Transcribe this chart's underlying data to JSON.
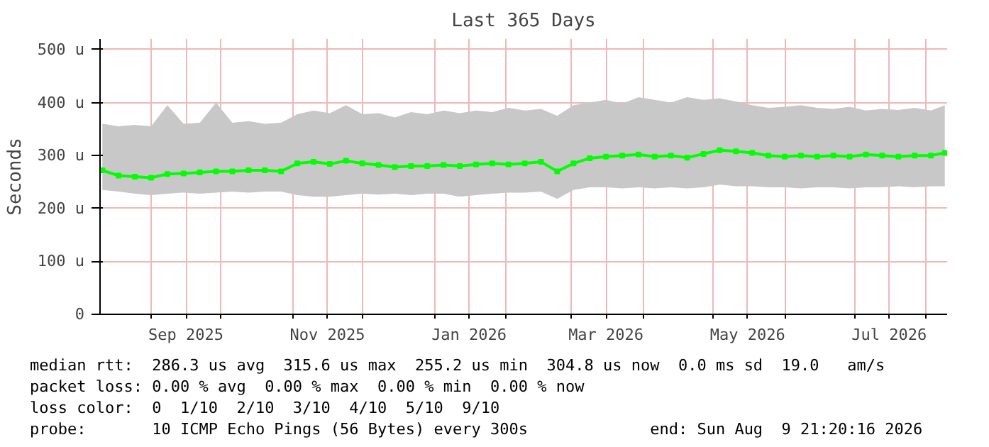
{
  "chart_data": {
    "type": "line",
    "title": "Last 365 Days",
    "ylabel": "Seconds",
    "x": [
      "2025-08-11",
      "2025-08-18",
      "2025-08-25",
      "2025-09-01",
      "2025-09-08",
      "2025-09-15",
      "2025-09-22",
      "2025-09-29",
      "2025-10-06",
      "2025-10-13",
      "2025-10-20",
      "2025-10-27",
      "2025-11-03",
      "2025-11-10",
      "2025-11-17",
      "2025-11-24",
      "2025-12-01",
      "2025-12-08",
      "2025-12-15",
      "2025-12-22",
      "2025-12-29",
      "2026-01-05",
      "2026-01-12",
      "2026-01-19",
      "2026-01-26",
      "2026-02-02",
      "2026-02-09",
      "2026-02-16",
      "2026-02-23",
      "2026-03-02",
      "2026-03-09",
      "2026-03-16",
      "2026-03-23",
      "2026-03-30",
      "2026-04-06",
      "2026-04-13",
      "2026-04-20",
      "2026-04-27",
      "2026-05-04",
      "2026-05-11",
      "2026-05-18",
      "2026-05-25",
      "2026-06-01",
      "2026-06-08",
      "2026-06-15",
      "2026-06-22",
      "2026-06-29",
      "2026-07-06",
      "2026-07-13",
      "2026-07-20",
      "2026-07-27",
      "2026-08-03",
      "2026-08-09"
    ],
    "series": [
      {
        "color": "#00ff00",
        "values": [
          272,
          262,
          260,
          258,
          265,
          266,
          268,
          270,
          270,
          272,
          272,
          270,
          285,
          288,
          284,
          290,
          285,
          282,
          278,
          280,
          280,
          282,
          280,
          283,
          285,
          283,
          285,
          288,
          270,
          285,
          295,
          298,
          300,
          302,
          298,
          300,
          296,
          303,
          310,
          308,
          305,
          300,
          298,
          300,
          298,
          300,
          298,
          302,
          300,
          298,
          300,
          300,
          305
        ],
        "lower": [
          235,
          232,
          228,
          225,
          228,
          230,
          228,
          230,
          232,
          230,
          232,
          232,
          225,
          222,
          222,
          225,
          228,
          226,
          228,
          225,
          228,
          228,
          222,
          225,
          228,
          230,
          230,
          232,
          218,
          235,
          240,
          240,
          238,
          240,
          238,
          240,
          238,
          240,
          245,
          242,
          242,
          240,
          240,
          238,
          240,
          240,
          238,
          240,
          240,
          242,
          240,
          242,
          242
        ],
        "upper": [
          360,
          355,
          358,
          355,
          395,
          360,
          362,
          400,
          362,
          365,
          360,
          362,
          378,
          385,
          380,
          395,
          378,
          380,
          372,
          382,
          378,
          385,
          380,
          385,
          382,
          390,
          385,
          388,
          375,
          395,
          400,
          405,
          398,
          410,
          405,
          400,
          410,
          405,
          408,
          402,
          395,
          390,
          392,
          395,
          390,
          388,
          392,
          385,
          388,
          386,
          390,
          385,
          395
        ]
      }
    ],
    "xlim": [
      "2025-08-10",
      "2026-08-10"
    ],
    "xticks": [
      {
        "value": "2025-09-01",
        "label": null
      },
      {
        "value": "2025-09-16",
        "label": "Sep 2025"
      },
      {
        "value": "2025-10-01",
        "label": null
      },
      {
        "value": "2025-11-01",
        "label": null
      },
      {
        "value": "2025-11-16",
        "label": "Nov 2025"
      },
      {
        "value": "2025-12-01",
        "label": null
      },
      {
        "value": "2026-01-01",
        "label": null
      },
      {
        "value": "2026-01-16",
        "label": "Jan 2026"
      },
      {
        "value": "2026-02-01",
        "label": null
      },
      {
        "value": "2026-03-01",
        "label": null
      },
      {
        "value": "2026-03-16",
        "label": "Mar 2026"
      },
      {
        "value": "2026-04-01",
        "label": null
      },
      {
        "value": "2026-05-01",
        "label": null
      },
      {
        "value": "2026-05-16",
        "label": "May 2026"
      },
      {
        "value": "2026-06-01",
        "label": null
      },
      {
        "value": "2026-07-01",
        "label": null
      },
      {
        "value": "2026-07-16",
        "label": "Jul 2026"
      },
      {
        "value": "2026-08-01",
        "label": null
      }
    ],
    "ylim": [
      0,
      520
    ],
    "yticks": [
      0,
      {
        "value": 100,
        "label": "100 u"
      },
      {
        "value": 200,
        "label": "200 u"
      },
      {
        "value": 300,
        "label": "300 u"
      },
      {
        "value": 400,
        "label": "400 u"
      },
      {
        "value": 500,
        "label": "500 u"
      }
    ],
    "grid": true,
    "marker": "square",
    "line_style": "solid",
    "annotations": [
      "median rtt:  286.3 us avg  315.6 us max  255.2 us min  304.8 us now  0.0 ms sd  19.0   am/s",
      "packet loss: 0.00 % avg  0.00 % max  0.00 % min  0.00 % now",
      "loss color:  0  1/10  2/10  3/10  4/10  5/10  9/10",
      "probe:       10 ICMP Echo Pings (56 Bytes) every 300s             end: Sun Aug  9 21:20:16 2026"
    ]
  }
}
